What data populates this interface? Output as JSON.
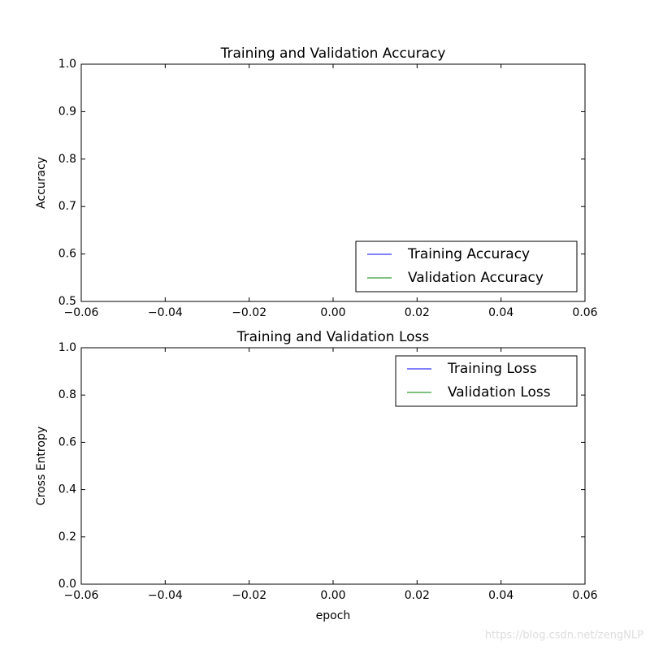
{
  "chart_data": [
    {
      "type": "line",
      "title": "Training and Validation Accuracy",
      "y_label": "Accuracy",
      "x": [],
      "series": [
        {
          "name": "Training Accuracy",
          "color": "#0000ff",
          "values": []
        },
        {
          "name": "Validation Accuracy",
          "color": "#008000",
          "values": []
        }
      ],
      "xlim": [
        -0.06,
        0.06
      ],
      "xticks": [
        {
          "value": -0.06,
          "label": "−0.06"
        },
        {
          "value": -0.04,
          "label": "−0.04"
        },
        {
          "value": -0.02,
          "label": "−0.02"
        },
        {
          "value": 0,
          "label": "0.00"
        },
        {
          "value": 0.02,
          "label": "0.02"
        },
        {
          "value": 0.04,
          "label": "0.04"
        },
        {
          "value": 0.06,
          "label": "0.06"
        }
      ],
      "ylim": [
        0.5,
        1.0
      ],
      "yticks": [
        0.5,
        0.6,
        0.7,
        0.8,
        0.9,
        {
          "value": 1.0,
          "label": "1.0"
        }
      ],
      "legend": "lower right",
      "grid": false
    },
    {
      "type": "line",
      "title": "Training and Validation Loss",
      "y_label": "Cross Entropy",
      "x_label": "epoch",
      "x": [],
      "series": [
        {
          "name": "Training Loss",
          "color": "#0000ff",
          "values": []
        },
        {
          "name": "Validation Loss",
          "color": "#008000",
          "values": []
        }
      ],
      "xlim": [
        -0.06,
        0.06
      ],
      "xticks": [
        {
          "value": -0.06,
          "label": "−0.06"
        },
        {
          "value": -0.04,
          "label": "−0.04"
        },
        {
          "value": -0.02,
          "label": "−0.02"
        },
        {
          "value": 0,
          "label": "0.00"
        },
        {
          "value": 0.02,
          "label": "0.02"
        },
        {
          "value": 0.04,
          "label": "0.04"
        },
        {
          "value": 0.06,
          "label": "0.06"
        }
      ],
      "ylim": [
        0.0,
        1.0
      ],
      "yticks": [
        {
          "value": 0.0,
          "label": "0.0"
        },
        0.2,
        0.4,
        0.6,
        0.8,
        {
          "value": 1.0,
          "label": "1.0"
        }
      ],
      "legend": "upper right",
      "grid": false
    }
  ],
  "watermark": "https://blog.csdn.net/zengNLP"
}
